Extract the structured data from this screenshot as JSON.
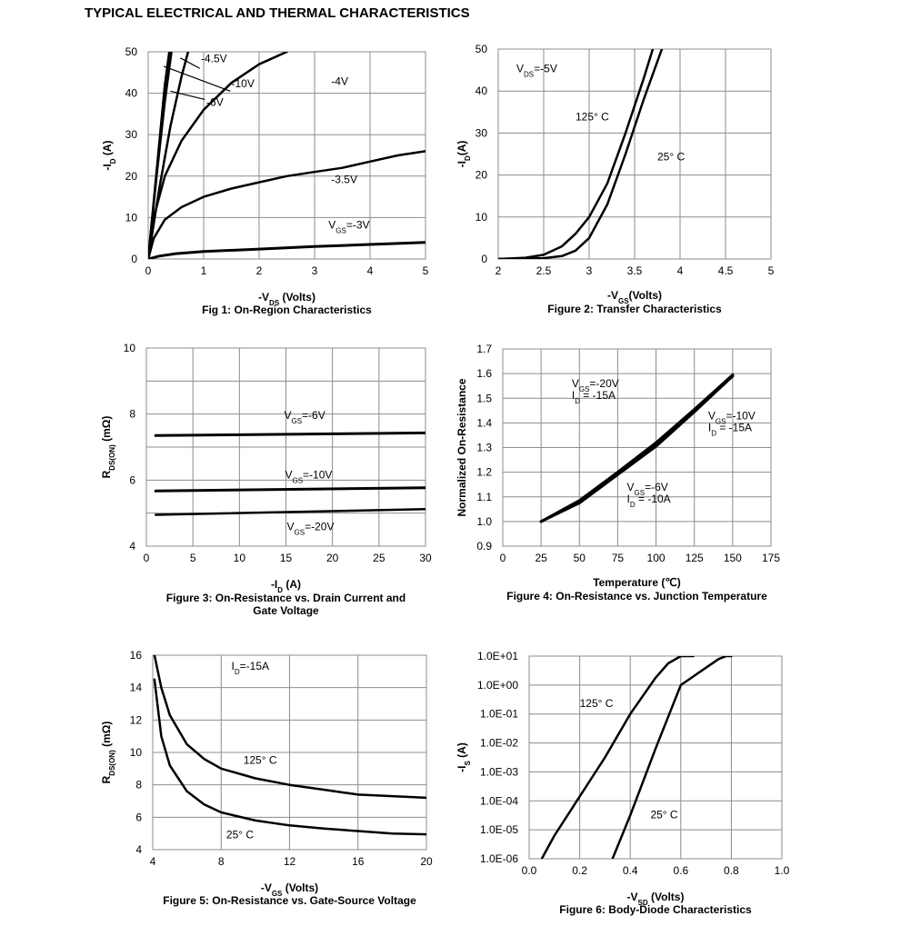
{
  "page": {
    "title": "TYPICAL ELECTRICAL AND THERMAL CHARACTERISTICS"
  },
  "chart_data": [
    {
      "id": "fig1",
      "type": "line",
      "title": "Fig 1: On-Region Characteristics",
      "xlabel": {
        "pre": "-V",
        "sub": "DS",
        "post": " (Volts)"
      },
      "ylabel": {
        "pre": "-I",
        "sub": "D",
        "post": " (A)"
      },
      "xlim": [
        0,
        5
      ],
      "ylim": [
        0,
        50
      ],
      "xticks": [
        "0",
        "1",
        "2",
        "3",
        "4",
        "5"
      ],
      "yticks": [
        "0",
        "10",
        "20",
        "30",
        "40",
        "50"
      ],
      "series": [
        {
          "name": "VGS=-3V",
          "x": [
            0,
            0.2,
            0.5,
            1,
            2,
            3,
            4,
            5
          ],
          "y": [
            0,
            0.7,
            1.3,
            1.8,
            2.4,
            3.0,
            3.5,
            4.0
          ]
        },
        {
          "name": "-3.5V",
          "x": [
            0,
            0.1,
            0.3,
            0.6,
            1,
            1.5,
            2,
            2.5,
            3,
            3.5,
            4,
            4.5,
            5
          ],
          "y": [
            0,
            5,
            9.5,
            12.5,
            15,
            17,
            18.5,
            20,
            21,
            22,
            23.5,
            25,
            26
          ]
        },
        {
          "name": "-4V",
          "x": [
            0,
            0.1,
            0.3,
            0.6,
            1,
            1.5,
            2,
            2.5
          ],
          "y": [
            0,
            10,
            20,
            28.5,
            36,
            42.5,
            47,
            50
          ]
        },
        {
          "name": "-6V",
          "x": [
            0,
            0.2,
            0.4,
            0.6,
            0.72
          ],
          "y": [
            0,
            17,
            32,
            44,
            50
          ]
        },
        {
          "name": "-10V",
          "x": [
            0,
            0.15,
            0.3,
            0.42
          ],
          "y": [
            0,
            20,
            38,
            50
          ]
        },
        {
          "name": "-4.5V",
          "x": [
            0,
            0.1,
            0.2,
            0.3,
            0.38
          ],
          "y": [
            0,
            14,
            28,
            42,
            50
          ]
        }
      ],
      "annotations": [
        {
          "text": "-4.5V",
          "x": 0.95,
          "y": 47.5
        },
        {
          "text": "-10V",
          "x": 1.5,
          "y": 41.5
        },
        {
          "text": "-6V",
          "x": 1.05,
          "y": 37
        },
        {
          "text": "-4V",
          "x": 3.3,
          "y": 42
        },
        {
          "text": "-3.5V",
          "x": 3.3,
          "y": 18.3
        },
        {
          "text_pre": "V",
          "text_sub": "GS",
          "text_post": "=-3V",
          "x": 3.25,
          "y": 7.3
        }
      ]
    },
    {
      "id": "fig2",
      "type": "line",
      "title": "Figure 2: Transfer Characteristics",
      "xlabel": {
        "pre": "-V",
        "sub": "GS",
        "post": "(Volts)"
      },
      "ylabel": {
        "pre": "-I",
        "sub": "D",
        "post": "(A)"
      },
      "xlim": [
        2,
        5
      ],
      "ylim": [
        0,
        50
      ],
      "xticks": [
        "2",
        "2.5",
        "3",
        "3.5",
        "4",
        "4.5",
        "5"
      ],
      "yticks": [
        "0",
        "10",
        "20",
        "30",
        "40",
        "50"
      ],
      "series": [
        {
          "name": "125° C",
          "x": [
            2,
            2.3,
            2.5,
            2.7,
            2.85,
            3,
            3.2,
            3.4,
            3.6,
            3.7
          ],
          "y": [
            0,
            0.3,
            1,
            3,
            6,
            10,
            18,
            30,
            43,
            50
          ]
        },
        {
          "name": "25° C",
          "x": [
            2,
            2.5,
            2.7,
            2.85,
            3,
            3.2,
            3.4,
            3.6,
            3.8
          ],
          "y": [
            0,
            0.2,
            0.7,
            2,
            5,
            13,
            25,
            38,
            50
          ]
        }
      ],
      "annotations": [
        {
          "text_pre": "V",
          "text_sub": "DS",
          "text_post": "=-5V",
          "x": 2.2,
          "y": 44.5
        },
        {
          "text": "125°  C",
          "x": 2.85,
          "y": 33
        },
        {
          "text": "25°  C",
          "x": 3.75,
          "y": 23.5
        }
      ]
    },
    {
      "id": "fig3",
      "type": "line",
      "title": "Figure 3: On-Resistance vs. Drain Current and",
      "title2": "Gate Voltage",
      "xlabel": {
        "pre": "-I",
        "sub": "D",
        "post": " (A)"
      },
      "ylabel": {
        "pre": "R",
        "sub": "DS(ON)",
        "post": " (mΩ)"
      },
      "xlim": [
        0,
        30
      ],
      "ylim": [
        4,
        10
      ],
      "xticks": [
        "0",
        "5",
        "10",
        "15",
        "20",
        "25",
        "30"
      ],
      "yticks": [
        "4",
        "6",
        "8",
        "10"
      ],
      "yticks_at": [
        4,
        6,
        8,
        10
      ],
      "series": [
        {
          "name": "VGS=-6V",
          "x": [
            1,
            30
          ],
          "y": [
            7.35,
            7.43
          ]
        },
        {
          "name": "VGS=-10V",
          "x": [
            1,
            30
          ],
          "y": [
            5.67,
            5.77
          ]
        },
        {
          "name": "VGS=-20V",
          "x": [
            1,
            30
          ],
          "y": [
            4.95,
            5.12
          ]
        }
      ],
      "annotations": [
        {
          "text_pre": "V",
          "text_sub": "GS",
          "text_post": "=-6V",
          "x": 14.8,
          "y": 7.85
        },
        {
          "text_pre": "V",
          "text_sub": "GS",
          "text_post": "=-10V",
          "x": 14.9,
          "y": 6.05
        },
        {
          "text_pre": "V",
          "text_sub": "GS",
          "text_post": "=-20V",
          "x": 15.1,
          "y": 4.48
        }
      ]
    },
    {
      "id": "fig4",
      "type": "line",
      "title": "Figure 4: On-Resistance vs. Junction Temperature",
      "xlabel": {
        "pre": "Temperature (℃)",
        "sub": "",
        "post": ""
      },
      "ylabel": {
        "pre": "Normalized On-Resistance",
        "sub": "",
        "post": ""
      },
      "xlim": [
        0,
        175
      ],
      "ylim": [
        0.9,
        1.7
      ],
      "xticks": [
        "0",
        "25",
        "50",
        "75",
        "100",
        "125",
        "150",
        "175"
      ],
      "yticks": [
        "0.9",
        "1.0",
        "1.1",
        "1.2",
        "1.3",
        "1.4",
        "1.5",
        "1.6",
        "1.7"
      ],
      "series": [
        {
          "name": "VGS=-20V ID=-15A",
          "x": [
            25,
            50,
            75,
            100,
            125,
            150
          ],
          "y": [
            1.0,
            1.085,
            1.2,
            1.32,
            1.455,
            1.595
          ]
        },
        {
          "name": "VGS=-10V ID=-15A",
          "x": [
            25,
            50,
            75,
            100,
            125,
            150
          ],
          "y": [
            1.0,
            1.08,
            1.195,
            1.31,
            1.45,
            1.59
          ]
        },
        {
          "name": "VGS=-6V ID=-10A",
          "x": [
            25,
            50,
            75,
            100,
            125,
            150
          ],
          "y": [
            1.0,
            1.075,
            1.19,
            1.305,
            1.445,
            1.59
          ]
        }
      ],
      "annotations": [
        {
          "lines": [
            {
              "pre": "V",
              "sub": "GS",
              "post": "=-20V"
            },
            {
              "pre": "I",
              "sub": "D",
              "post": " = -15A"
            }
          ],
          "x": 45,
          "y": 1.545
        },
        {
          "lines": [
            {
              "pre": "V",
              "sub": "GS",
              "post": "=-10V"
            },
            {
              "pre": "I",
              "sub": "D",
              "post": " = -15A"
            }
          ],
          "x": 134,
          "y": 1.415
        },
        {
          "lines": [
            {
              "pre": "V",
              "sub": "GS",
              "post": "=-6V"
            },
            {
              "pre": "I",
              "sub": "D",
              "post": " = -10A"
            }
          ],
          "x": 81,
          "y": 1.125
        }
      ]
    },
    {
      "id": "fig5",
      "type": "line",
      "title": "Figure 5: On-Resistance vs. Gate-Source Voltage",
      "xlabel": {
        "pre": "-V",
        "sub": "GS",
        "post": " (Volts)"
      },
      "ylabel": {
        "pre": "R",
        "sub": "DS(ON)",
        "post": " (mΩ)"
      },
      "xlim": [
        4,
        20
      ],
      "ylim": [
        4,
        16
      ],
      "xticks": [
        "4",
        "8",
        "12",
        "16",
        "20"
      ],
      "yticks": [
        "4",
        "6",
        "8",
        "10",
        "12",
        "14",
        "16"
      ],
      "series": [
        {
          "name": "125° C",
          "x": [
            4.1,
            4.5,
            5,
            6,
            7,
            8,
            10,
            12,
            14,
            16,
            18,
            20
          ],
          "y": [
            16,
            14,
            12.3,
            10.5,
            9.6,
            9.0,
            8.4,
            8.0,
            7.7,
            7.4,
            7.3,
            7.2
          ]
        },
        {
          "name": "25° C",
          "x": [
            4.1,
            4.5,
            5,
            6,
            7,
            8,
            10,
            12,
            14,
            16,
            18,
            20
          ],
          "y": [
            14.5,
            11,
            9.2,
            7.6,
            6.8,
            6.3,
            5.8,
            5.5,
            5.3,
            5.15,
            5.0,
            4.95
          ]
        }
      ],
      "annotations": [
        {
          "text_pre": "I",
          "text_sub": "D",
          "text_post": "=-15A",
          "x": 8.6,
          "y": 15.1
        },
        {
          "text": "125°  C",
          "x": 9.3,
          "y": 9.3
        },
        {
          "text": "25°  C",
          "x": 8.3,
          "y": 4.7
        }
      ]
    },
    {
      "id": "fig6",
      "type": "line",
      "title": "Figure 6: Body-Diode Characteristics",
      "xlabel": {
        "pre": "-V",
        "sub": "SD",
        "post": " (Volts)"
      },
      "ylabel": {
        "pre": "-I",
        "sub": "S",
        "post": " (A)"
      },
      "xlim": [
        0,
        1.0
      ],
      "ylim": [
        -6,
        1
      ],
      "yscale": "log",
      "xticks": [
        "0.0",
        "0.2",
        "0.4",
        "0.6",
        "0.8",
        "1.0"
      ],
      "yticks": [
        "1.0E-06",
        "1.0E-05",
        "1.0E-04",
        "1.0E-03",
        "1.0E-02",
        "1.0E-01",
        "1.0E+00",
        "1.0E+01"
      ],
      "series": [
        {
          "name": "125° C",
          "x": [
            0.05,
            0.1,
            0.2,
            0.3,
            0.4,
            0.5,
            0.55,
            0.6,
            0.65
          ],
          "y": [
            -6,
            -5.2,
            -3.85,
            -2.5,
            -1.0,
            0.25,
            0.75,
            1.0,
            1.0
          ]
        },
        {
          "name": "25° C",
          "x": [
            0.33,
            0.4,
            0.5,
            0.6,
            0.7,
            0.75,
            0.78,
            0.8
          ],
          "y": [
            -6,
            -4.5,
            -2.2,
            0.0,
            0.6,
            0.9,
            1.0,
            1.0
          ]
        }
      ],
      "annotations": [
        {
          "text": "125°  C",
          "x": 0.2,
          "y": -0.75
        },
        {
          "text": "25°  C",
          "x": 0.48,
          "y": -4.6
        }
      ]
    }
  ]
}
